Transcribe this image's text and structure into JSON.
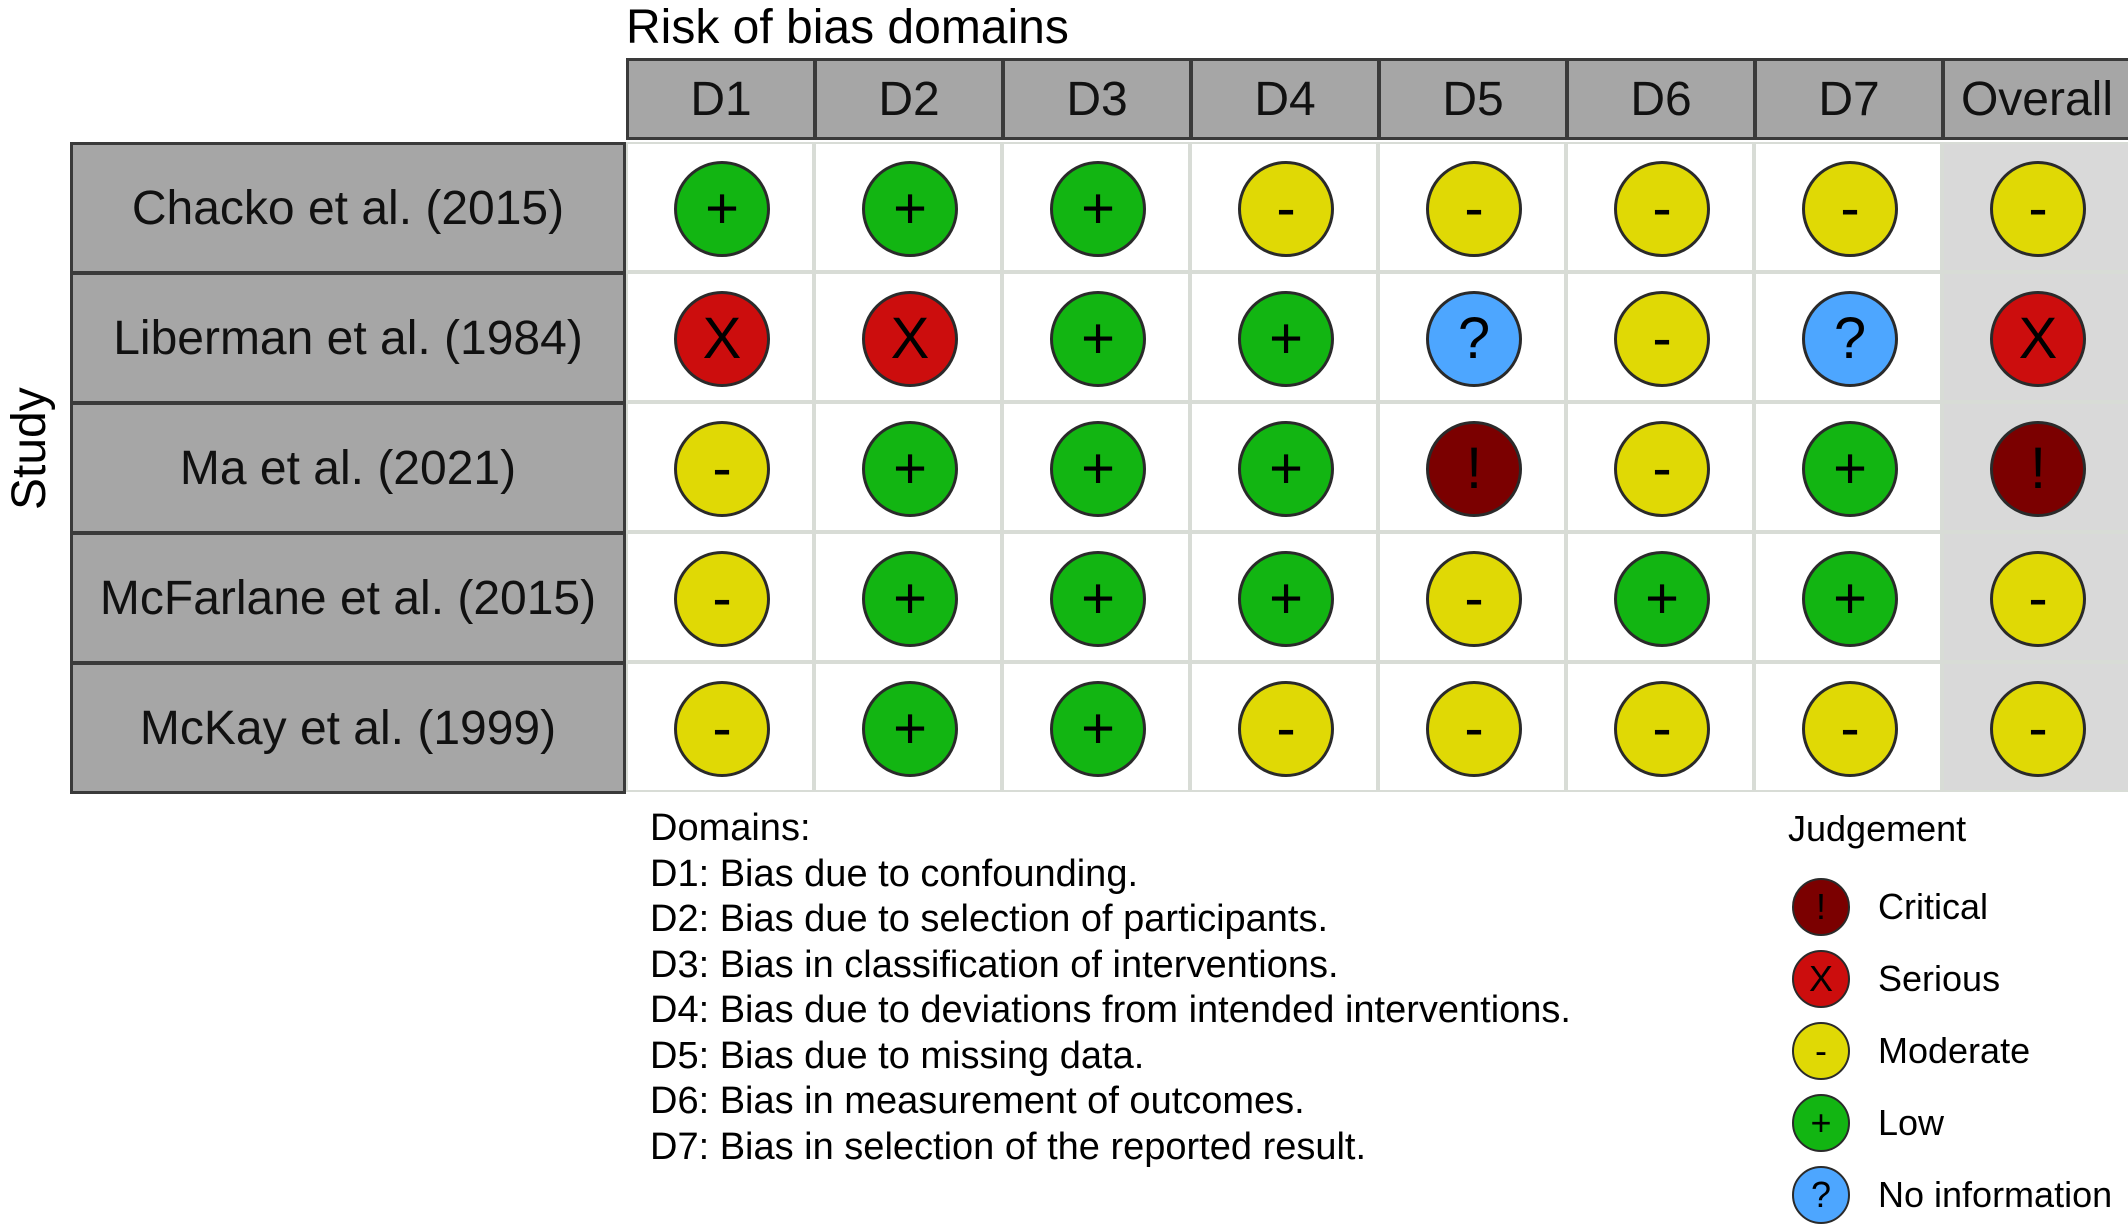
{
  "chart_data": {
    "type": "table",
    "title": "Risk of bias domains",
    "ylabel": "Study",
    "columns": [
      "D1",
      "D2",
      "D3",
      "D4",
      "D5",
      "D6",
      "D7",
      "Overall"
    ],
    "rows": [
      {
        "study": "Chacko et al. (2015)",
        "judgements": [
          "Low",
          "Low",
          "Low",
          "Moderate",
          "Moderate",
          "Moderate",
          "Moderate",
          "Moderate"
        ]
      },
      {
        "study": "Liberman et al. (1984)",
        "judgements": [
          "Serious",
          "Serious",
          "Low",
          "Low",
          "No information",
          "Moderate",
          "No information",
          "Serious"
        ]
      },
      {
        "study": "Ma et al. (2021)",
        "judgements": [
          "Moderate",
          "Low",
          "Low",
          "Low",
          "Critical",
          "Moderate",
          "Low",
          "Critical"
        ]
      },
      {
        "study": "McFarlane et al. (2015)",
        "judgements": [
          "Moderate",
          "Low",
          "Low",
          "Low",
          "Moderate",
          "Low",
          "Low",
          "Moderate"
        ]
      },
      {
        "study": "McKay et al. (1999)",
        "judgements": [
          "Moderate",
          "Low",
          "Low",
          "Moderate",
          "Moderate",
          "Moderate",
          "Moderate",
          "Moderate"
        ]
      }
    ],
    "domains_title": "Domains:",
    "domains": [
      "D1: Bias due to confounding.",
      "D2: Bias due to selection of participants.",
      "D3: Bias in classification of interventions.",
      "D4: Bias due to deviations from intended interventions.",
      "D5: Bias due to missing data.",
      "D6: Bias in measurement of outcomes.",
      "D7: Bias in selection of the reported result."
    ],
    "legend_title": "Judgement",
    "legend": [
      {
        "label": "Critical",
        "symbol": "!",
        "color": "#7b0000"
      },
      {
        "label": "Serious",
        "symbol": "X",
        "color": "#cc0d0d"
      },
      {
        "label": "Moderate",
        "symbol": "-",
        "color": "#e0d905"
      },
      {
        "label": "Low",
        "symbol": "+",
        "color": "#12b512"
      },
      {
        "label": "No information",
        "symbol": "?",
        "color": "#4da6ff"
      }
    ]
  }
}
